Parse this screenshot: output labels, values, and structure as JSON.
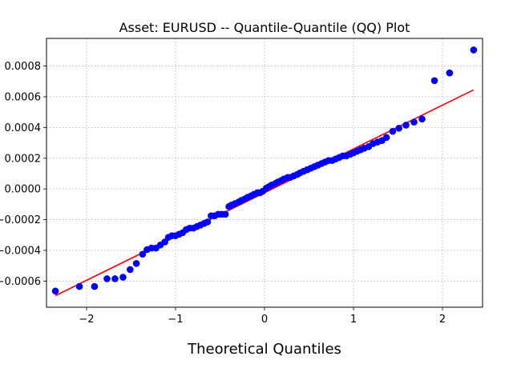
{
  "chart_data": {
    "type": "scatter",
    "title": "Asset: EURUSD -- Quantile-Quantile (QQ) Plot",
    "xlabel": "Theoretical Quantiles",
    "ylabel": "",
    "xlim": [
      -2.45,
      2.45
    ],
    "ylim": [
      -0.00077,
      0.00098
    ],
    "grid": true,
    "x_ticks": [
      -2,
      -1,
      0,
      1,
      2
    ],
    "x_tick_labels": [
      "−2",
      "−1",
      "0",
      "1",
      "2"
    ],
    "y_ticks": [
      -0.0006,
      -0.0004,
      -0.0002,
      0.0,
      0.0002,
      0.0004,
      0.0006,
      0.0008
    ],
    "y_tick_labels": [
      "−0.0006",
      "−0.0004",
      "−0.0002",
      "0.0000",
      "0.0002",
      "0.0004",
      "0.0006",
      "0.0008"
    ],
    "colors": {
      "points": "#0000ff",
      "fit_line": "#ff0000"
    },
    "series": [
      {
        "kind": "points",
        "x": [
          -2.35,
          -2.08,
          -1.91,
          -1.77,
          -1.68,
          -1.59,
          -1.51,
          -1.44,
          -1.37,
          -1.32,
          -1.27,
          -1.22,
          -1.17,
          -1.12,
          -1.08,
          -1.04,
          -1.0,
          -0.96,
          -0.92,
          -0.88,
          -0.84,
          -0.8,
          -0.76,
          -0.72,
          -0.68,
          -0.64,
          -0.6,
          -0.56,
          -0.52,
          -0.48,
          -0.44,
          -0.4,
          -0.37,
          -0.33,
          -0.29,
          -0.26,
          -0.22,
          -0.19,
          -0.15,
          -0.12,
          -0.08,
          -0.05,
          -0.02,
          0.02,
          0.05,
          0.08,
          0.12,
          0.15,
          0.19,
          0.22,
          0.26,
          0.29,
          0.33,
          0.37,
          0.4,
          0.44,
          0.48,
          0.52,
          0.56,
          0.6,
          0.64,
          0.68,
          0.72,
          0.76,
          0.8,
          0.84,
          0.88,
          0.92,
          0.96,
          1.0,
          1.04,
          1.08,
          1.12,
          1.17,
          1.22,
          1.27,
          1.32,
          1.37,
          1.44,
          1.51,
          1.59,
          1.68,
          1.77,
          1.91,
          2.08,
          2.35
        ],
        "y": [
          -0.000665,
          -0.000635,
          -0.000635,
          -0.000585,
          -0.000585,
          -0.000575,
          -0.000525,
          -0.000485,
          -0.000425,
          -0.000395,
          -0.000385,
          -0.000385,
          -0.000365,
          -0.000345,
          -0.000315,
          -0.000305,
          -0.000305,
          -0.000295,
          -0.000285,
          -0.000265,
          -0.000255,
          -0.000255,
          -0.000245,
          -0.000235,
          -0.000225,
          -0.000215,
          -0.000175,
          -0.000175,
          -0.000165,
          -0.000165,
          -0.000165,
          -0.000115,
          -0.000105,
          -9.5e-05,
          -8.5e-05,
          -7.5e-05,
          -6.5e-05,
          -5.5e-05,
          -4.5e-05,
          -3.5e-05,
          -2.5e-05,
          -2.5e-05,
          -1.5e-05,
          5e-06,
          1.5e-05,
          2.5e-05,
          3.5e-05,
          4.5e-05,
          5.5e-05,
          6.5e-05,
          7.5e-05,
          7.5e-05,
          8.5e-05,
          9.5e-05,
          0.000105,
          0.000115,
          0.000125,
          0.000135,
          0.000145,
          0.000155,
          0.000165,
          0.000175,
          0.000185,
          0.000185,
          0.000195,
          0.000205,
          0.000215,
          0.000215,
          0.000225,
          0.000235,
          0.000245,
          0.000255,
          0.000265,
          0.000275,
          0.000295,
          0.000305,
          0.000315,
          0.000335,
          0.000375,
          0.000395,
          0.000415,
          0.000435,
          0.000455,
          0.000705,
          0.000755,
          0.000905
        ]
      },
      {
        "kind": "fit_line",
        "x": [
          -2.35,
          2.35
        ],
        "y": [
          -0.000695,
          0.000645
        ]
      }
    ]
  }
}
